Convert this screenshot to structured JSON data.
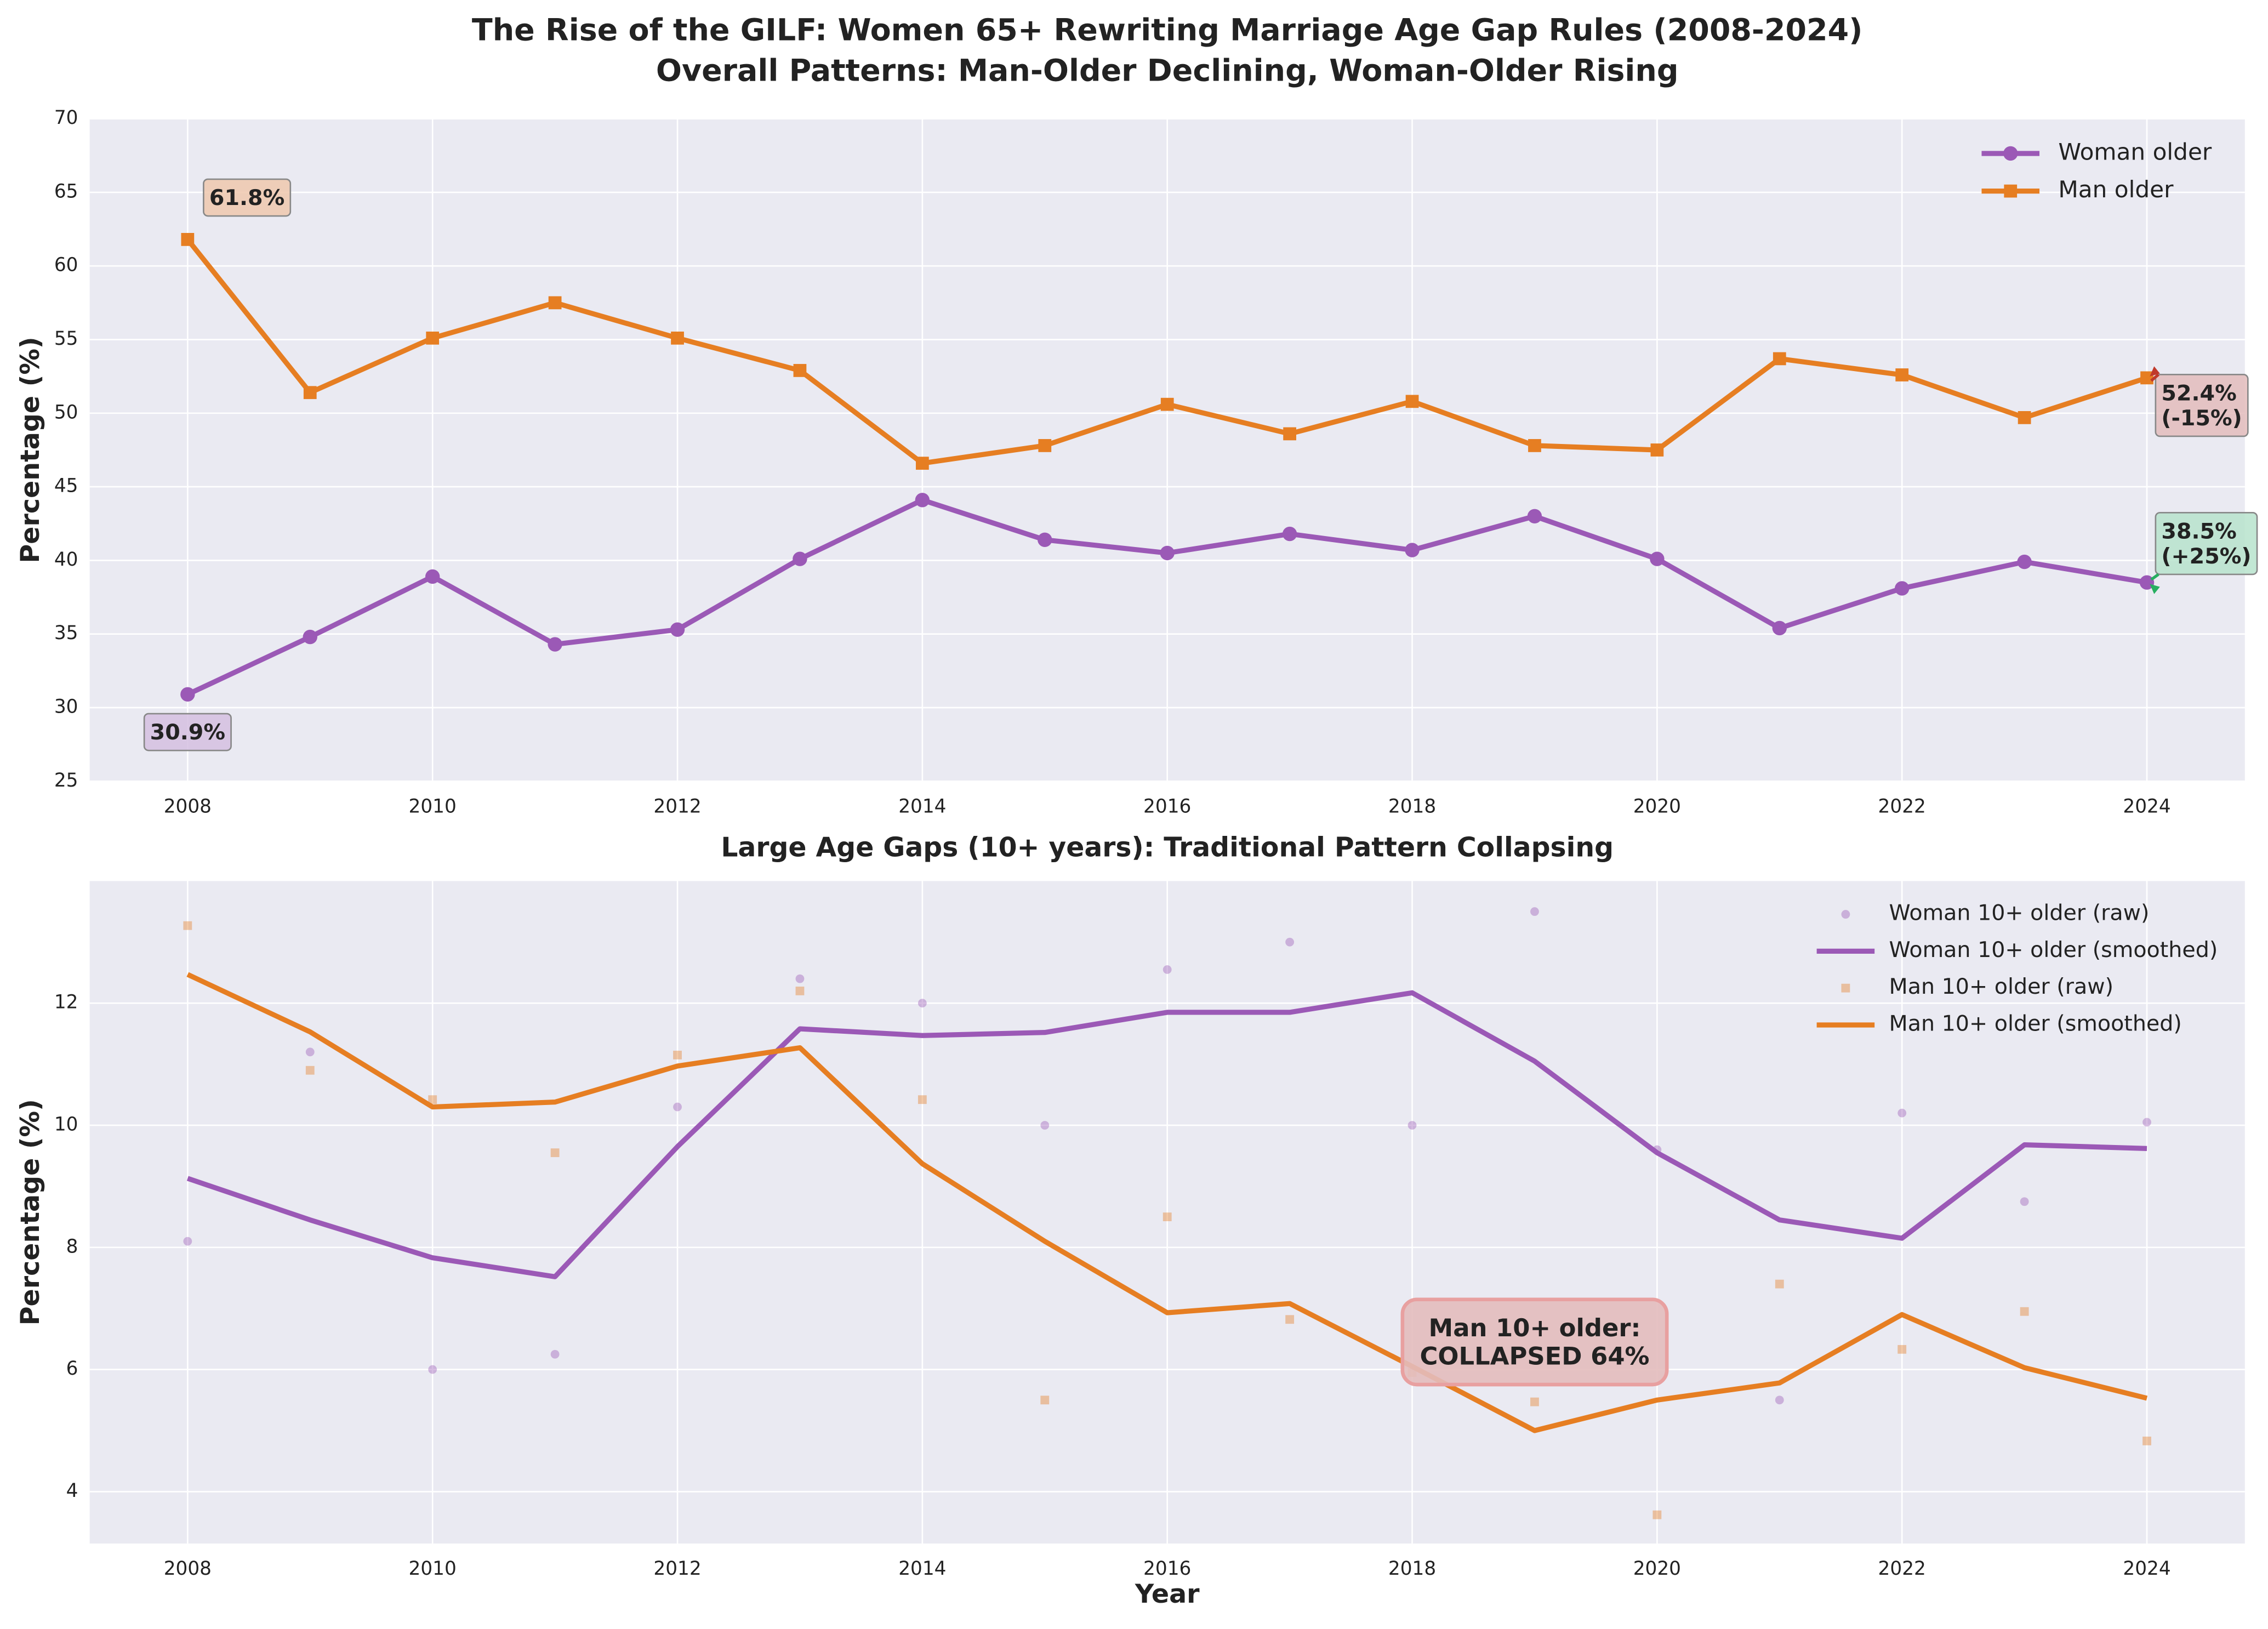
{
  "chart_data": [
    {
      "type": "line",
      "title": "The Rise of the GILF: Women 65+ Rewriting Marriage Age Gap Rules (2008-2024)",
      "subtitle": "Overall Patterns: Man-Older Declining, Woman-Older Rising",
      "ylabel": "Percentage (%)",
      "x": [
        2008,
        2009,
        2010,
        2011,
        2012,
        2013,
        2014,
        2015,
        2016,
        2017,
        2018,
        2019,
        2020,
        2021,
        2022,
        2023,
        2024
      ],
      "xlim": [
        2007.2,
        2024.8
      ],
      "xticks": [
        2008,
        2010,
        2012,
        2014,
        2016,
        2018,
        2020,
        2022,
        2024
      ],
      "ylim": [
        25,
        70
      ],
      "yticks": [
        25,
        30,
        35,
        40,
        45,
        50,
        55,
        60,
        65,
        70
      ],
      "grid": true,
      "legend": "upper right",
      "series": [
        {
          "name": "Woman older",
          "color": "#9b59b6",
          "kind": "line",
          "marker": "circle",
          "values": [
            30.9,
            34.8,
            38.9,
            34.3,
            35.3,
            40.1,
            44.1,
            41.4,
            40.5,
            41.8,
            40.7,
            43.0,
            40.1,
            35.4,
            38.1,
            39.9,
            38.5
          ]
        },
        {
          "name": "Man older",
          "color": "#e67e22",
          "kind": "line",
          "marker": "square",
          "values": [
            61.8,
            51.4,
            55.1,
            57.5,
            55.1,
            52.9,
            46.6,
            47.8,
            50.6,
            48.6,
            50.8,
            47.8,
            47.5,
            53.7,
            52.6,
            49.7,
            52.4
          ]
        }
      ],
      "annotations": [
        {
          "lines": [
            "61.8%"
          ],
          "x": 2008,
          "y": 61.8,
          "color": "#eec8ae"
        },
        {
          "lines": [
            "30.9%"
          ],
          "x": 2008,
          "y": 30.9,
          "color": "#d5bfe0"
        },
        {
          "lines": [
            "52.4%",
            "(-15%)"
          ],
          "x": 2024,
          "y": 52.4,
          "color": "#e3bcbc"
        },
        {
          "lines": [
            "38.5%",
            "(+25%)"
          ],
          "x": 2024,
          "y": 38.5,
          "color": "#b7e3cc"
        }
      ]
    },
    {
      "type": "line",
      "title": "Large Age Gaps (10+ years): Traditional Pattern Collapsing",
      "xlabel": "Year",
      "ylabel": "Percentage (%)",
      "x": [
        2008,
        2009,
        2010,
        2011,
        2012,
        2013,
        2014,
        2015,
        2016,
        2017,
        2018,
        2019,
        2020,
        2021,
        2022,
        2023,
        2024
      ],
      "xlim": [
        2007.2,
        2024.8
      ],
      "xticks": [
        2008,
        2010,
        2012,
        2014,
        2016,
        2018,
        2020,
        2022,
        2024
      ],
      "ylim": [
        3.15,
        14.0
      ],
      "yticks": [
        4,
        6,
        8,
        10,
        12
      ],
      "grid": true,
      "legend": "upper right",
      "series": [
        {
          "name": "Woman 10+ older (raw)",
          "color": "#9b59b6",
          "kind": "scatter",
          "marker": "circle",
          "values": [
            8.1,
            11.2,
            6.0,
            6.25,
            10.3,
            12.4,
            12.0,
            10.0,
            12.55,
            13.0,
            10.0,
            13.5,
            9.6,
            5.5,
            10.2,
            8.75,
            10.05
          ]
        },
        {
          "name": "Woman 10+ older (smoothed)",
          "color": "#9b59b6",
          "kind": "line",
          "marker": "none",
          "values": [
            9.13,
            8.45,
            7.83,
            7.52,
            9.65,
            11.58,
            11.47,
            11.52,
            11.85,
            11.85,
            12.17,
            11.05,
            9.55,
            8.45,
            8.15,
            9.68,
            9.62
          ]
        },
        {
          "name": "Man 10+ older (raw)",
          "color": "#e67e22",
          "kind": "scatter",
          "marker": "square",
          "values": [
            13.27,
            10.9,
            10.42,
            9.55,
            11.15,
            12.2,
            10.42,
            5.5,
            8.5,
            6.82,
            5.95,
            5.47,
            3.62,
            7.4,
            6.33,
            6.95,
            4.83
          ]
        },
        {
          "name": "Man 10+ older (smoothed)",
          "color": "#e67e22",
          "kind": "line",
          "marker": "none",
          "values": [
            12.47,
            11.53,
            10.3,
            10.38,
            10.97,
            11.27,
            9.37,
            8.1,
            6.93,
            7.08,
            6.05,
            5.0,
            5.5,
            5.78,
            6.9,
            6.03,
            5.53
          ]
        }
      ],
      "annotations": [
        {
          "lines": [
            "Man 10+ older:",
            "COLLAPSED 64%"
          ],
          "color": "#e3bcbc"
        }
      ]
    }
  ]
}
